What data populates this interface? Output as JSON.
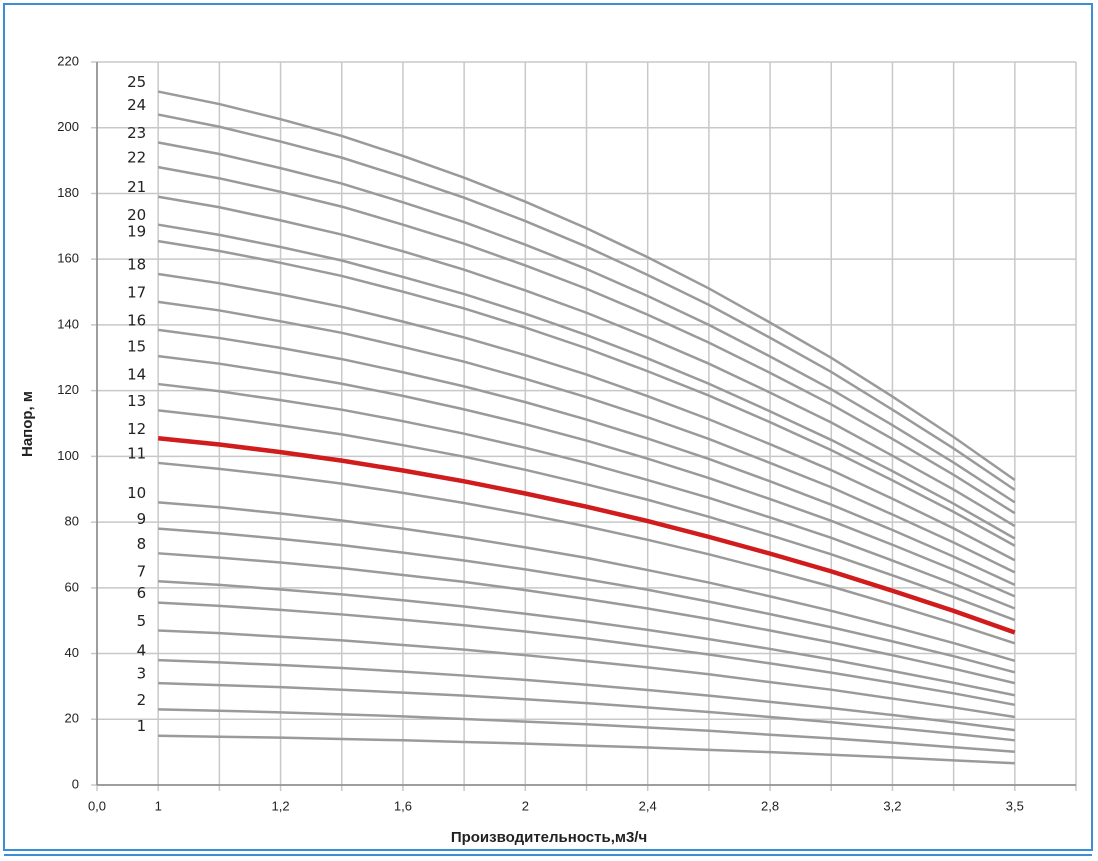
{
  "chart_data": {
    "type": "line",
    "xlabel": "Производительность,м3/ч",
    "ylabel": "Напор, м",
    "categories": [
      "0,0",
      "1",
      null,
      "1,2",
      null,
      "1,6",
      null,
      "2",
      null,
      "2,4",
      null,
      "2,8",
      null,
      "3,2",
      null,
      "3,5",
      null
    ],
    "ylim": [
      0,
      220
    ],
    "yticks": [
      0,
      20,
      40,
      60,
      80,
      100,
      120,
      140,
      160,
      180,
      200,
      220
    ],
    "grid": true,
    "series": [
      {
        "name": "1",
        "color": "#9a9a9a",
        "values": [
          null,
          15,
          14.7,
          14.4,
          14,
          13.6,
          13.1,
          12.6,
          12,
          11.4,
          10.7,
          10,
          9.2,
          8.4,
          7.5,
          6.6,
          null
        ]
      },
      {
        "name": "2",
        "color": "#9a9a9a",
        "values": [
          null,
          23,
          22.6,
          22.1,
          21.5,
          20.9,
          20.1,
          19.3,
          18.5,
          17.5,
          16.5,
          15.3,
          14.2,
          12.9,
          11.5,
          10.1,
          null
        ]
      },
      {
        "name": "3",
        "color": "#9a9a9a",
        "values": [
          null,
          31,
          30.4,
          29.8,
          29,
          28.1,
          27.2,
          26.1,
          24.9,
          23.6,
          22.2,
          20.7,
          19.1,
          17.4,
          15.6,
          13.6,
          null
        ]
      },
      {
        "name": "4",
        "color": "#9a9a9a",
        "values": [
          null,
          38,
          37.3,
          36.5,
          35.6,
          34.5,
          33.3,
          32,
          30.5,
          28.9,
          27.2,
          25.3,
          23.4,
          21.3,
          19.1,
          16.7,
          null
        ]
      },
      {
        "name": "5",
        "color": "#9a9a9a",
        "values": [
          null,
          47,
          46.2,
          45.1,
          44,
          42.6,
          41.2,
          39.5,
          37.7,
          35.8,
          33.7,
          31.3,
          29,
          26.3,
          23.6,
          20.7,
          null
        ]
      },
      {
        "name": "6",
        "color": "#9a9a9a",
        "values": [
          null,
          55.5,
          54.5,
          53.3,
          51.9,
          50.3,
          48.6,
          46.7,
          44.6,
          42.2,
          39.7,
          37,
          34.2,
          31.1,
          27.9,
          24.4,
          null
        ]
      },
      {
        "name": "7",
        "color": "#9a9a9a",
        "values": [
          null,
          62,
          60.9,
          59.5,
          58,
          56.2,
          54.3,
          52.1,
          49.8,
          47.2,
          44.4,
          41.4,
          38.2,
          34.7,
          31.1,
          27.3,
          null
        ]
      },
      {
        "name": "8",
        "color": "#9a9a9a",
        "values": [
          null,
          70.5,
          69.2,
          67.7,
          66,
          63.9,
          61.8,
          59.3,
          56.6,
          53.7,
          50.5,
          47,
          43.4,
          39.5,
          35.4,
          31,
          null
        ]
      },
      {
        "name": "9",
        "color": "#9a9a9a",
        "values": [
          null,
          78,
          76.6,
          74.9,
          73,
          70.7,
          68.3,
          65.6,
          62.6,
          59.4,
          55.8,
          52,
          48,
          43.7,
          39.2,
          34.3,
          null
        ]
      },
      {
        "name": "10",
        "color": "#9a9a9a",
        "values": [
          null,
          86,
          84.5,
          82.6,
          80.5,
          78,
          75.3,
          72.3,
          69.1,
          65.4,
          61.6,
          57.4,
          53,
          48.2,
          43.2,
          37.8,
          null
        ]
      },
      {
        "name": "11",
        "color": "#9a9a9a",
        "values": [
          null,
          98,
          96.2,
          94.1,
          91.7,
          88.9,
          85.8,
          82.4,
          78.7,
          74.6,
          70.2,
          65.4,
          60.4,
          54.9,
          49.2,
          43.1,
          null
        ]
      },
      {
        "name": "12",
        "color": "#d01c1c",
        "values": [
          null,
          105.5,
          103.6,
          101.3,
          98.7,
          95.7,
          92.4,
          88.7,
          84.7,
          80.3,
          75.5,
          70.4,
          65,
          59.1,
          53,
          46.4,
          null
        ]
      },
      {
        "name": "13",
        "color": "#9a9a9a",
        "values": [
          null,
          114,
          111.9,
          109.4,
          106.7,
          103.4,
          99.9,
          95.9,
          91.5,
          86.8,
          81.6,
          76,
          70.2,
          63.8,
          57.2,
          50.2,
          null
        ]
      },
      {
        "name": "14",
        "color": "#9a9a9a",
        "values": [
          null,
          122,
          119.8,
          117.1,
          114.2,
          110.7,
          106.9,
          102.6,
          98,
          92.8,
          87.4,
          81.4,
          75.2,
          68.3,
          61.2,
          53.7,
          null
        ]
      },
      {
        "name": "15",
        "color": "#9a9a9a",
        "values": [
          null,
          130.5,
          128.2,
          125.3,
          122.1,
          118.4,
          114.3,
          109.8,
          104.8,
          99.3,
          93.4,
          87,
          80.4,
          73.1,
          65.5,
          57.4,
          null
        ]
      },
      {
        "name": "16",
        "color": "#9a9a9a",
        "values": [
          null,
          138.5,
          136,
          133,
          129.6,
          125.6,
          121.3,
          116.5,
          111.2,
          105.4,
          99.2,
          92.4,
          85.3,
          77.6,
          69.5,
          60.9,
          null
        ]
      },
      {
        "name": "17",
        "color": "#9a9a9a",
        "values": [
          null,
          147,
          144.4,
          141.1,
          137.6,
          133.3,
          128.8,
          123.6,
          118,
          111.9,
          105.3,
          98,
          90.6,
          82.3,
          73.8,
          64.7,
          null
        ]
      },
      {
        "name": "18",
        "color": "#9a9a9a",
        "values": [
          null,
          155.5,
          152.7,
          149.3,
          145.5,
          141,
          136.2,
          130.8,
          124.9,
          118.3,
          111.3,
          103.7,
          95.8,
          87.1,
          78.1,
          68.4,
          null
        ]
      },
      {
        "name": "19",
        "color": "#9a9a9a",
        "values": [
          null,
          165.5,
          162.5,
          158.9,
          154.9,
          150.1,
          145,
          139.2,
          132.9,
          125.9,
          118.5,
          110.4,
          101.9,
          92.7,
          83.1,
          72.8,
          null
        ]
      },
      {
        "name": "20",
        "color": "#9a9a9a",
        "values": [
          null,
          170.5,
          167.4,
          163.7,
          159.6,
          154.6,
          149.4,
          143.4,
          136.9,
          129.8,
          122.1,
          113.7,
          105,
          95.5,
          85.6,
          75,
          null
        ]
      },
      {
        "name": "21",
        "color": "#9a9a9a",
        "values": [
          null,
          179,
          175.8,
          171.8,
          167.5,
          162.4,
          156.8,
          150.5,
          143.7,
          136.2,
          128.2,
          119.4,
          110.3,
          100.2,
          89.9,
          78.8,
          null
        ]
      },
      {
        "name": "22",
        "color": "#9a9a9a",
        "values": [
          null,
          188,
          184.6,
          180.5,
          176,
          170.5,
          164.7,
          158.1,
          151,
          143.1,
          134.6,
          125.4,
          115.8,
          105.3,
          94.4,
          82.7,
          null
        ]
      },
      {
        "name": "23",
        "color": "#9a9a9a",
        "values": [
          null,
          195.5,
          192,
          187.7,
          183,
          177.3,
          171.3,
          164.4,
          157,
          148.8,
          140,
          130.4,
          120.4,
          109.5,
          98.1,
          86,
          null
        ]
      },
      {
        "name": "24",
        "color": "#9a9a9a",
        "values": [
          null,
          204,
          200.3,
          195.8,
          190.9,
          185,
          178.7,
          171.6,
          163.8,
          155.2,
          146.1,
          136.1,
          125.7,
          114.2,
          102.4,
          89.8,
          null
        ]
      },
      {
        "name": "25",
        "color": "#9a9a9a",
        "values": [
          null,
          211,
          207.2,
          202.6,
          197.5,
          191.4,
          184.8,
          177.5,
          169.4,
          160.6,
          151.1,
          140.7,
          130,
          118.2,
          105.9,
          92.8,
          null
        ]
      }
    ]
  }
}
